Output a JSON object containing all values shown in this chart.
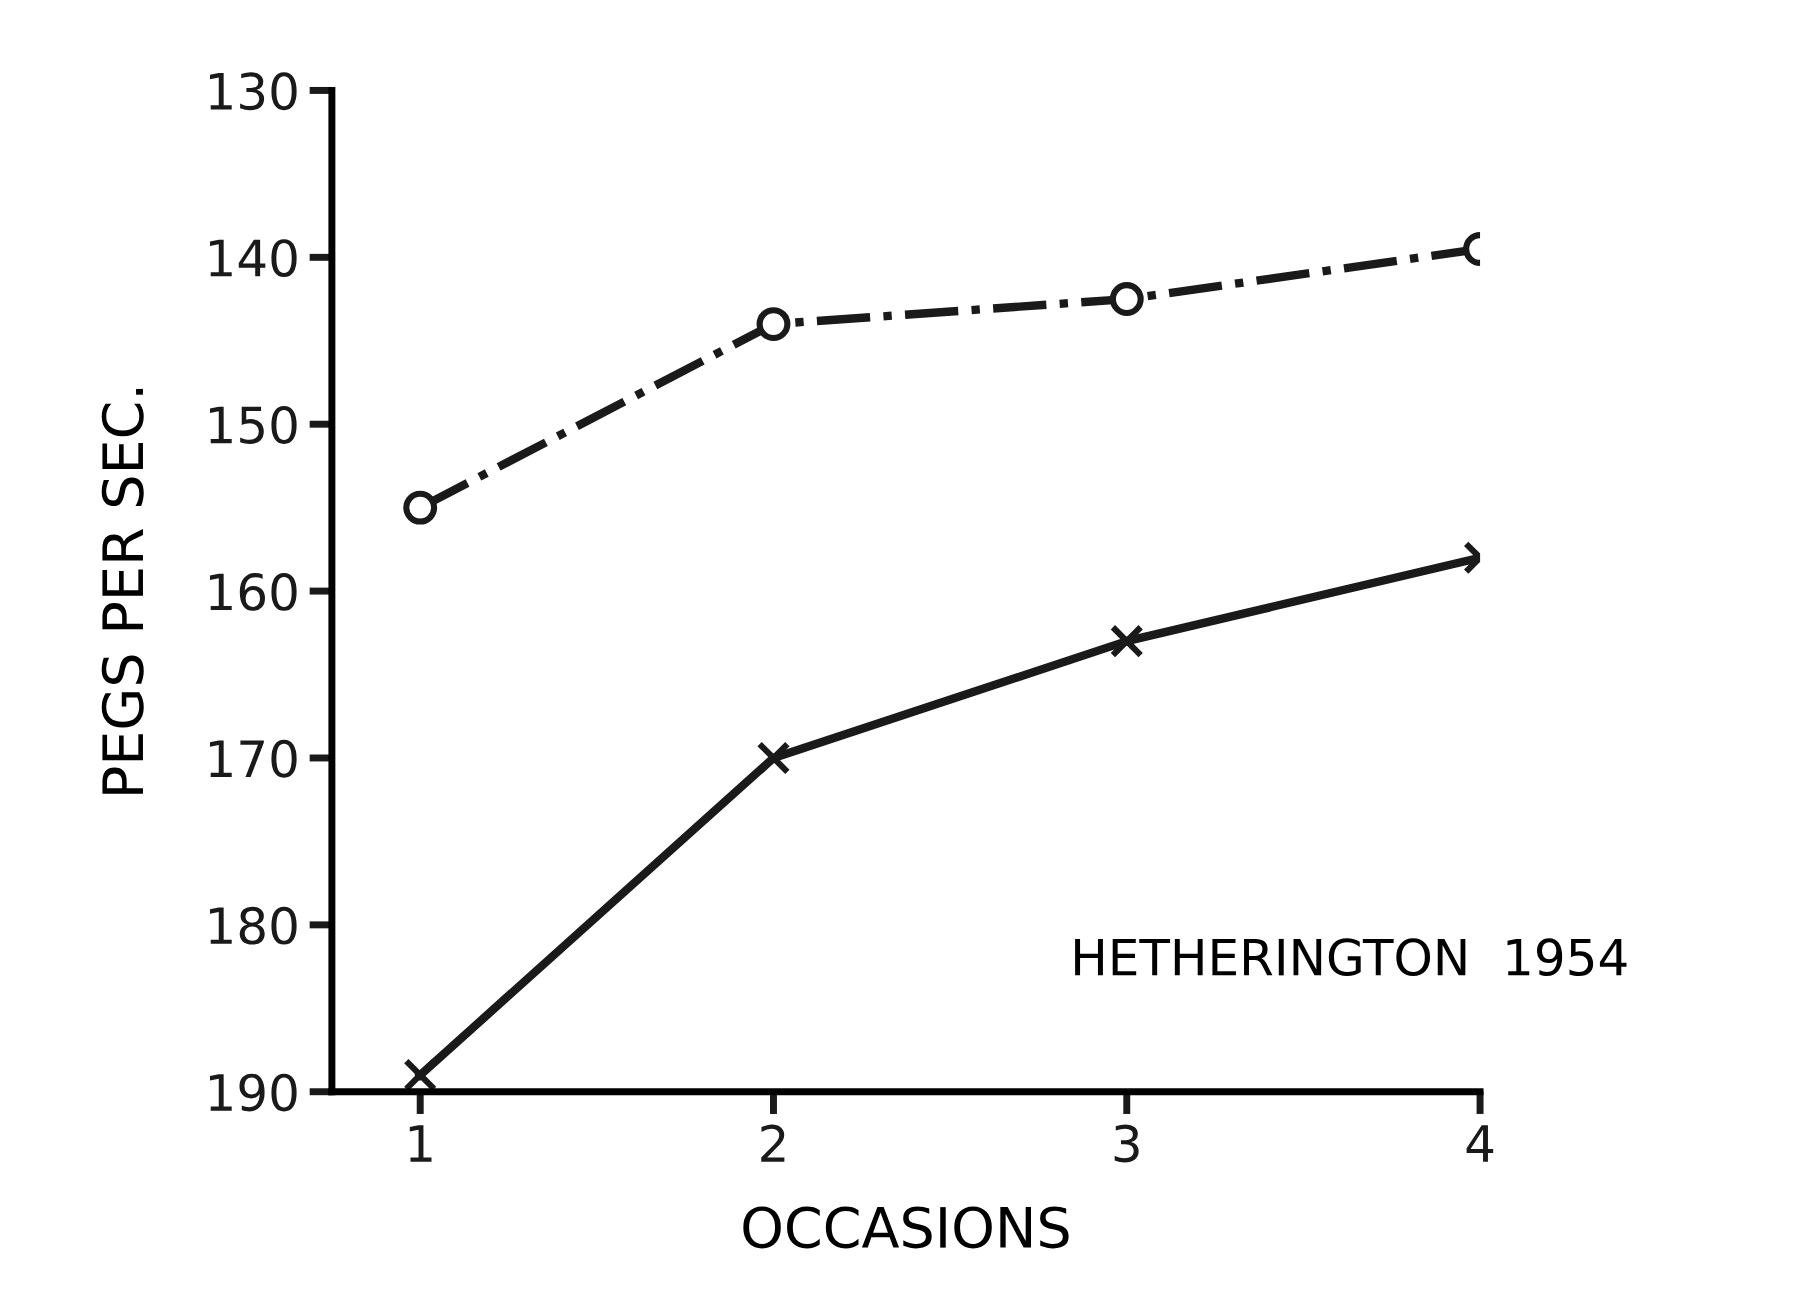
{
  "chart_data": {
    "type": "line",
    "xlabel": "OCCASIONS",
    "ylabel": "PEGS PER SEC.",
    "x": [
      1,
      2,
      3,
      4
    ],
    "series": [
      {
        "color": "#1a1a1a",
        "values": [
          155,
          144,
          142.5,
          139.5
        ],
        "marker": "circle",
        "line_style": "dashdot"
      },
      {
        "color": "#1a1a1a",
        "values": [
          189,
          170,
          163,
          158
        ],
        "marker": "cross",
        "line_style": "solid"
      }
    ],
    "xlim": [
      0.75,
      4
    ],
    "ylim": [
      190,
      130
    ],
    "xticks": [
      1,
      2,
      3,
      4
    ],
    "yticks": [
      130,
      140,
      150,
      160,
      170,
      180,
      190
    ],
    "annotations": [
      "HETHERINGTON  1954"
    ],
    "grid": false,
    "legend": false
  }
}
